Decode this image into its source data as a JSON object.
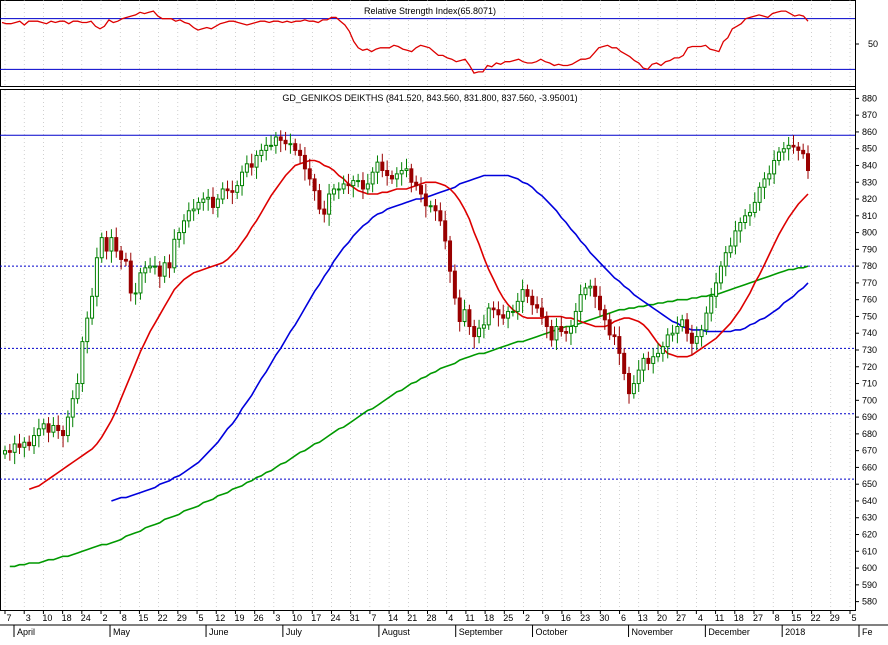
{
  "chart_data": [
    {
      "type": "line",
      "title": "Relative Strength Index(65.8071)",
      "ytick_labels": [
        {
          "label": "50",
          "value": 50
        }
      ],
      "ylim": [
        20,
        80
      ],
      "reference_lines": [
        70,
        30
      ],
      "reference_line_color": "#0000cc",
      "series": [
        {
          "color": "#dd0000",
          "values": [
            67,
            66,
            66,
            67,
            68,
            65,
            68,
            68,
            68,
            67,
            66,
            68,
            67,
            68,
            68,
            66,
            68,
            68,
            67,
            67,
            68,
            64,
            62,
            64,
            69,
            67,
            68,
            70,
            71,
            72,
            73,
            75,
            74,
            75,
            76,
            72,
            70,
            70,
            70,
            68,
            69,
            67,
            66,
            63,
            61,
            62,
            63,
            62,
            64,
            66,
            67,
            68,
            68,
            67,
            66,
            65,
            66,
            67,
            68,
            68,
            67,
            68,
            68,
            67,
            68,
            67,
            68,
            68,
            69,
            68,
            68,
            67,
            69,
            69,
            71,
            71,
            68,
            65,
            60,
            52,
            47,
            45,
            46,
            44,
            46,
            47,
            47,
            47,
            49,
            48,
            46,
            45,
            44,
            47,
            49,
            48,
            47,
            44,
            41,
            41,
            39,
            38,
            36,
            37,
            38,
            33,
            27,
            28,
            28,
            33,
            32,
            35,
            34,
            36,
            36,
            37,
            38,
            36,
            35,
            35,
            36,
            38,
            36,
            35,
            33,
            34,
            33,
            33,
            34,
            36,
            38,
            38,
            39,
            43,
            47,
            48,
            49,
            47,
            47,
            44,
            42,
            40,
            37,
            35,
            31,
            30,
            34,
            35,
            33,
            36,
            37,
            39,
            39,
            41,
            47,
            48,
            48,
            48,
            49,
            46,
            45,
            44,
            52,
            55,
            62,
            64,
            66,
            70,
            71,
            72,
            73,
            72,
            71,
            74,
            75,
            76,
            76,
            74,
            72,
            73,
            72,
            68
          ]
        }
      ]
    },
    {
      "type": "candlestick",
      "title": "GD_GENIKOS DEIKTHS (841.520, 843.560, 831.800, 837.560, -3.95001)",
      "ylim": [
        575,
        885
      ],
      "yticks": [
        580,
        590,
        600,
        610,
        620,
        630,
        640,
        650,
        660,
        670,
        680,
        690,
        700,
        710,
        720,
        730,
        740,
        750,
        760,
        770,
        780,
        790,
        800,
        810,
        820,
        830,
        840,
        850,
        860,
        870,
        880
      ],
      "reference_lines": [
        {
          "value": 858,
          "style": "solid",
          "color": "#0000cc"
        },
        {
          "value": 780,
          "style": "dotted",
          "color": "#0000cc"
        },
        {
          "value": 731,
          "style": "dotted",
          "color": "#0000cc"
        },
        {
          "value": 692,
          "style": "dotted",
          "color": "#0000cc"
        },
        {
          "value": 653,
          "style": "dotted",
          "color": "#0000cc"
        }
      ],
      "x_tick_labels": [
        "7",
        "3",
        "10",
        "18",
        "24",
        "2",
        "8",
        "15",
        "22",
        "29",
        "5",
        "12",
        "19",
        "26",
        "3",
        "10",
        "17",
        "24",
        "31",
        "7",
        "14",
        "21",
        "28",
        "4",
        "11",
        "18",
        "25",
        "2",
        "9",
        "16",
        "23",
        "30",
        "6",
        "13",
        "20",
        "27",
        "4",
        "11",
        "18",
        "27",
        "8",
        "15",
        "22",
        "29",
        "5"
      ],
      "month_labels": [
        "April",
        "May",
        "June",
        "July",
        "August",
        "September",
        "October",
        "November",
        "December",
        "2018",
        "Fe"
      ],
      "up_color": "#008000",
      "down_color": "#990000",
      "close": [
        670,
        669,
        674,
        672,
        675,
        673,
        679,
        683,
        686,
        681,
        685,
        682,
        679,
        690,
        701,
        710,
        735,
        749,
        762,
        785,
        797,
        789,
        797,
        789,
        784,
        783,
        764,
        764,
        776,
        779,
        780,
        780,
        774,
        782,
        779,
        796,
        800,
        807,
        813,
        814,
        818,
        820,
        821,
        815,
        820,
        826,
        825,
        824,
        828,
        836,
        841,
        839,
        846,
        849,
        852,
        852,
        857,
        855,
        853,
        853,
        849,
        846,
        838,
        832,
        825,
        814,
        811,
        823,
        826,
        826,
        829,
        828,
        831,
        831,
        826,
        829,
        836,
        842,
        837,
        834,
        832,
        835,
        837,
        838,
        830,
        828,
        823,
        816,
        816,
        813,
        807,
        795,
        777,
        761,
        747,
        754,
        744,
        738,
        743,
        745,
        755,
        754,
        751,
        749,
        753,
        753,
        759,
        766,
        762,
        757,
        755,
        750,
        744,
        736,
        744,
        741,
        740,
        744,
        753,
        763,
        767,
        768,
        762,
        754,
        748,
        739,
        738,
        728,
        716,
        704,
        710,
        718,
        725,
        722,
        726,
        728,
        732,
        739,
        740,
        744,
        748,
        740,
        734,
        738,
        742,
        752,
        762,
        770,
        780,
        788,
        792,
        801,
        806,
        810,
        812,
        818,
        827,
        832,
        835,
        843,
        848,
        850,
        852,
        851,
        849,
        847,
        837
      ],
      "ma_short": [
        647,
        648,
        649,
        651,
        653,
        655,
        657,
        659,
        661,
        663,
        665,
        667,
        669,
        671,
        674,
        678,
        683,
        688,
        694,
        701,
        708,
        715,
        722,
        729,
        735,
        741,
        746,
        751,
        756,
        761,
        766,
        769,
        772,
        774,
        776,
        777,
        778,
        779,
        780,
        781,
        782,
        784,
        787,
        790,
        794,
        798,
        803,
        807,
        812,
        817,
        822,
        826,
        830,
        834,
        837,
        840,
        841,
        842,
        843,
        843,
        842,
        840,
        839,
        837,
        834,
        832,
        829,
        827,
        825,
        824,
        823,
        823,
        823,
        824,
        824,
        825,
        826,
        826,
        826,
        827,
        828,
        829,
        830,
        830,
        830,
        829,
        828,
        826,
        823,
        819,
        814,
        808,
        800,
        793,
        785,
        778,
        772,
        766,
        761,
        757,
        754,
        752,
        750,
        749,
        749,
        749,
        749,
        750,
        750,
        750,
        750,
        749,
        749,
        748,
        747,
        746,
        745,
        744,
        744,
        744,
        745,
        747,
        748,
        749,
        749,
        748,
        747,
        745,
        742,
        738,
        734,
        731,
        728,
        727,
        726,
        726,
        726,
        727,
        729,
        731,
        733,
        735,
        737,
        740,
        743,
        746,
        750,
        754,
        759,
        764,
        770,
        775,
        781,
        787,
        793,
        799,
        804,
        809,
        813,
        817,
        820,
        823
      ],
      "ma_medium": [
        640,
        641,
        642,
        642,
        643,
        644,
        645,
        646,
        647,
        648,
        650,
        651,
        652,
        654,
        655,
        657,
        659,
        661,
        663,
        666,
        669,
        672,
        675,
        679,
        683,
        686,
        690,
        695,
        699,
        703,
        708,
        713,
        717,
        722,
        727,
        731,
        736,
        741,
        745,
        750,
        755,
        760,
        765,
        769,
        774,
        778,
        783,
        787,
        791,
        794,
        798,
        801,
        804,
        806,
        809,
        811,
        812,
        814,
        815,
        816,
        817,
        818,
        819,
        820,
        820,
        821,
        822,
        823,
        824,
        825,
        826,
        827,
        829,
        830,
        831,
        832,
        833,
        834,
        834,
        834,
        834,
        834,
        834,
        833,
        832,
        830,
        829,
        827,
        824,
        822,
        819,
        816,
        813,
        809,
        806,
        802,
        799,
        795,
        792,
        788,
        785,
        782,
        779,
        776,
        773,
        771,
        768,
        766,
        763,
        761,
        759,
        757,
        755,
        753,
        751,
        749,
        747,
        746,
        744,
        743,
        742,
        742,
        742,
        741,
        741,
        741,
        741,
        741,
        741,
        742,
        742,
        743,
        745,
        746,
        748,
        749,
        751,
        753,
        755,
        758,
        760,
        762,
        765,
        767,
        770
      ],
      "ma_long": [
        601,
        601,
        602,
        602,
        603,
        603,
        603,
        604,
        605,
        605,
        606,
        607,
        607,
        608,
        609,
        610,
        611,
        612,
        613,
        614,
        614,
        615,
        616,
        617,
        619,
        620,
        621,
        622,
        624,
        625,
        626,
        627,
        629,
        630,
        631,
        632,
        634,
        635,
        636,
        637,
        639,
        640,
        641,
        643,
        644,
        645,
        647,
        648,
        649,
        651,
        652,
        654,
        655,
        657,
        658,
        660,
        662,
        663,
        665,
        667,
        669,
        670,
        672,
        674,
        675,
        677,
        679,
        681,
        683,
        684,
        686,
        688,
        690,
        692,
        694,
        695,
        697,
        699,
        701,
        703,
        705,
        706,
        708,
        710,
        711,
        713,
        714,
        716,
        717,
        719,
        720,
        721,
        722,
        724,
        725,
        726,
        727,
        728,
        728,
        729,
        730,
        731,
        732,
        733,
        734,
        735,
        735,
        736,
        737,
        738,
        739,
        740,
        741,
        742,
        743,
        744,
        744,
        745,
        746,
        747,
        748,
        749,
        750,
        751,
        752,
        753,
        754,
        754,
        755,
        755,
        756,
        756,
        757,
        757,
        758,
        758,
        759,
        759,
        760,
        760,
        760,
        761,
        761,
        762,
        762,
        763,
        763,
        764,
        765,
        766,
        767,
        768,
        769,
        770,
        771,
        772,
        773,
        774,
        775,
        776,
        777,
        778,
        778,
        779,
        779,
        780
      ],
      "ma_colors": {
        "short": "#dd0000",
        "medium": "#0000dd",
        "long": "#009900"
      }
    }
  ]
}
